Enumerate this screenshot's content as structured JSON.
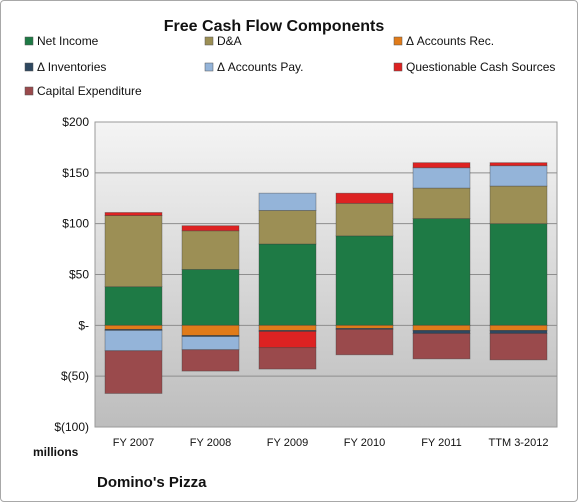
{
  "chart_data": {
    "type": "bar",
    "stacked": true,
    "title": "Free Cash Flow Components",
    "unit_label": "millions",
    "footnote": "Domino's Pizza",
    "categories": [
      "FY 2007",
      "FY 2008",
      "FY 2009",
      "FY 2010",
      "FY 2011",
      "TTM 3-2012"
    ],
    "ylim": [
      -100,
      200
    ],
    "yticks": [
      200,
      150,
      100,
      50,
      0,
      -50,
      -100
    ],
    "ytick_labels": [
      "$200",
      "$150",
      "$100",
      "$50",
      "$-",
      "$(50)",
      "$(100)"
    ],
    "grid": true,
    "legend_position": "top",
    "series": [
      {
        "name": "Net Income",
        "color": "#1e7a45",
        "values": [
          38,
          55,
          80,
          88,
          105,
          100
        ]
      },
      {
        "name": "D&A",
        "color": "#9c8f55",
        "values": [
          70,
          38,
          33,
          32,
          30,
          37
        ]
      },
      {
        "name": "Δ Accounts Rec.",
        "color": "#e07b1a",
        "values": [
          -4,
          -10,
          -5,
          -3,
          -5,
          -5
        ]
      },
      {
        "name": "Δ Inventories",
        "color": "#2e4860",
        "values": [
          -1,
          -1,
          -1,
          -1,
          -3,
          -3
        ]
      },
      {
        "name": "Δ Accounts Pay.",
        "color": "#94b4d9",
        "values": [
          -20,
          -13,
          17,
          0,
          20,
          20
        ]
      },
      {
        "name": "Questionable Cash Sources",
        "color": "#dd2222",
        "values": [
          3,
          5,
          -16,
          10,
          5,
          3
        ]
      },
      {
        "name": "Capital Expenditure",
        "color": "#9a4a4c",
        "values": [
          -42,
          -21,
          -21,
          -25,
          -25,
          -26
        ]
      }
    ]
  }
}
